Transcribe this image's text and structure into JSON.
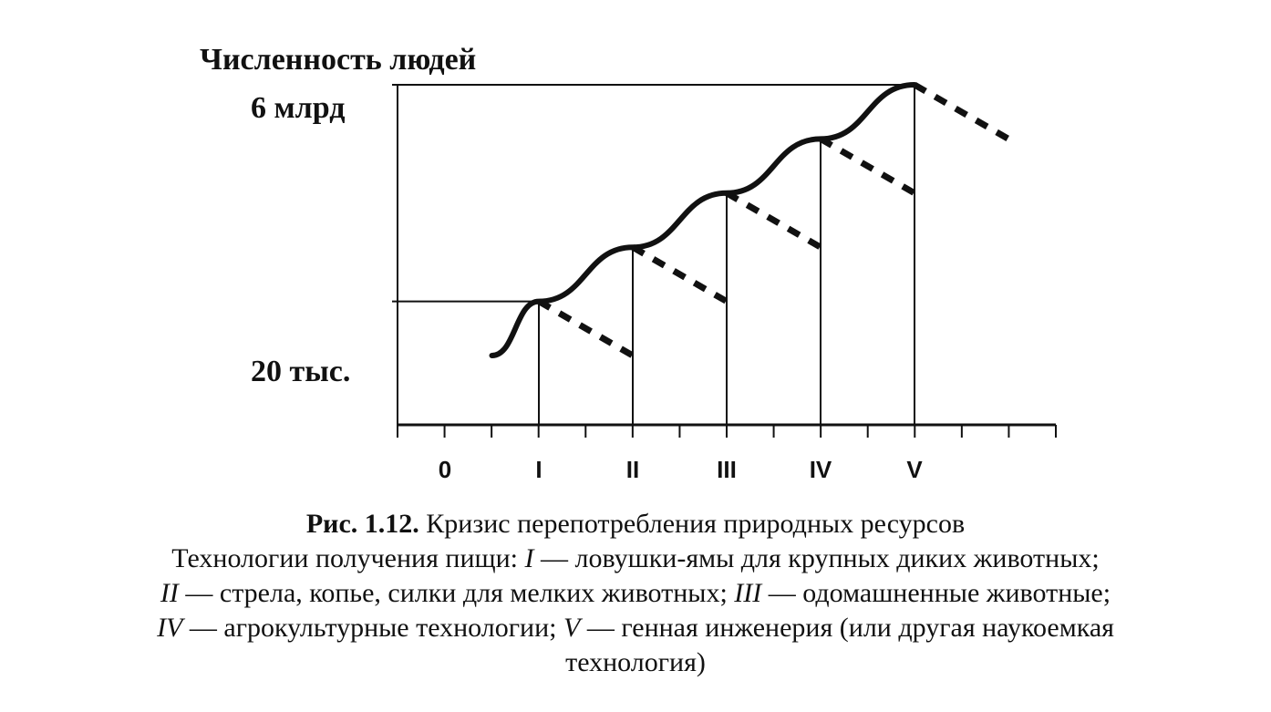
{
  "chart_data": {
    "type": "line",
    "ylabel": "Численность людей",
    "y_tick_labels": [
      "20 тыс.",
      "6 млрд"
    ],
    "x_categories": [
      "0",
      "I",
      "II",
      "III",
      "IV",
      "V"
    ],
    "growth_curve": {
      "style": "solid",
      "nodes": [
        {
          "x": 0.5,
          "y": 0
        },
        {
          "x": 1,
          "y": 1
        },
        {
          "x": 2,
          "y": 2
        },
        {
          "x": 3,
          "y": 3
        },
        {
          "x": 4,
          "y": 4
        },
        {
          "x": 5,
          "y": 5
        }
      ]
    },
    "decline_series": {
      "style": "dashed",
      "segments": [
        {
          "from": {
            "x": 1,
            "y": 1
          },
          "to": {
            "x": 2,
            "y": 0
          }
        },
        {
          "from": {
            "x": 2,
            "y": 2
          },
          "to": {
            "x": 3,
            "y": 1
          }
        },
        {
          "from": {
            "x": 3,
            "y": 3
          },
          "to": {
            "x": 4,
            "y": 2
          }
        },
        {
          "from": {
            "x": 4,
            "y": 4
          },
          "to": {
            "x": 5,
            "y": 3
          }
        },
        {
          "from": {
            "x": 5,
            "y": 5
          },
          "to": {
            "x": 6,
            "y": 4
          }
        }
      ]
    },
    "xlim": [
      -0.5,
      6.7
    ],
    "ylim": [
      -0.6,
      5
    ],
    "stroke_color": "#111111"
  },
  "caption": {
    "lead": "Рис. 1.12.",
    "title": " Кризис перепотребления природных ресурсов",
    "line2_text": "Технологии получения пищи: ",
    "line2_i_mark": "I",
    "line2_i_text": " — ловушки-ямы для крупных диких животных;",
    "line3_ii_mark": "II",
    "line3_ii_text": " — стрела, копье, силки для мелких животных; ",
    "line3_iii_mark": "III",
    "line3_iii_text": " — одомашненные животные;",
    "line4_iv_mark": "IV",
    "line4_iv_text": " — агрокультурные технологии; ",
    "line4_v_mark": "V",
    "line4_v_text": " — генная инженерия (или другая наукоемкая",
    "line5_text": "технология)"
  }
}
